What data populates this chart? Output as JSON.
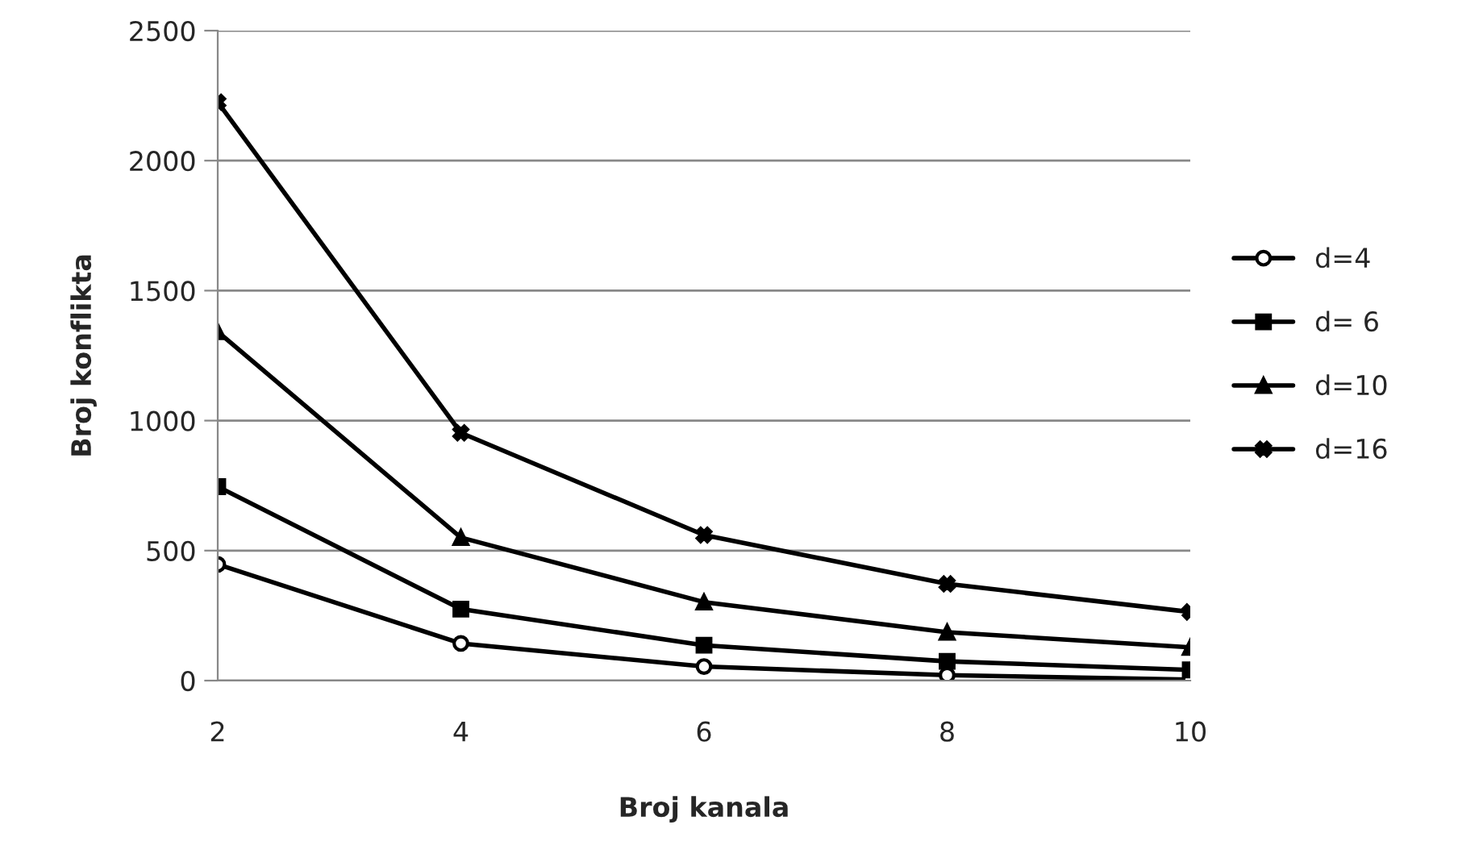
{
  "chart_data": {
    "type": "line",
    "xlabel": "Broj kanala",
    "ylabel": "Broj konflikta",
    "categories": [
      "2",
      "4",
      "6",
      "8",
      "10"
    ],
    "series": [
      {
        "name": "d=4",
        "color": "#000000",
        "marker": "circle",
        "values": [
          447,
          143,
          54,
          21,
          4
        ]
      },
      {
        "name": "d= 6",
        "color": "#000000",
        "marker": "square",
        "values": [
          746,
          275,
          136,
          74,
          41
        ]
      },
      {
        "name": "d=10",
        "color": "#000000",
        "marker": "triangle",
        "values": [
          1342,
          550,
          302,
          186,
          128
        ]
      },
      {
        "name": "d=16",
        "color": "#000000",
        "marker": "cross",
        "values": [
          2225,
          953,
          560,
          372,
          264
        ]
      }
    ],
    "ylim": [
      0,
      2500
    ],
    "yticks": [
      0,
      500,
      1000,
      1500,
      2000,
      2500
    ],
    "grid": "y",
    "legend": "right",
    "line_style": "solid"
  }
}
